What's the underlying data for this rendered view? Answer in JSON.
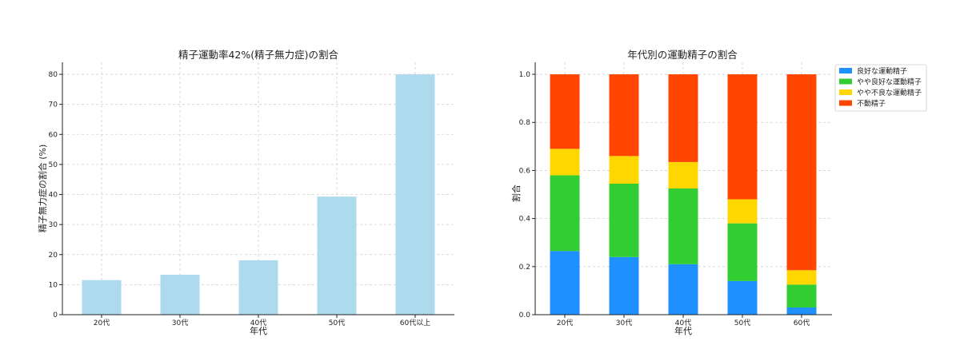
{
  "chart_data": [
    {
      "type": "bar",
      "title": "精子運動率42%(精子無力症)の割合",
      "xlabel": "年代",
      "ylabel": "精子無力症の割合 (%)",
      "categories": [
        "20代",
        "30代",
        "40代",
        "50代",
        "60代以上"
      ],
      "values": [
        11.5,
        13.3,
        18.1,
        39.3,
        80
      ],
      "ylim": [
        0,
        84
      ],
      "yticks": [
        "0",
        "10",
        "20",
        "30",
        "40",
        "50",
        "60",
        "70",
        "80"
      ],
      "ytick_values": [
        0,
        10,
        20,
        30,
        40,
        50,
        60,
        70,
        80
      ],
      "grid": true,
      "bar_color": "#ADDAEC"
    },
    {
      "type": "bar",
      "stacked": true,
      "title": "年代別の運動精子の割合",
      "xlabel": "年代",
      "ylabel": "割合",
      "categories": [
        "20代",
        "30代",
        "40代",
        "50代",
        "60代"
      ],
      "ylim": [
        0,
        1.05
      ],
      "yticks": [
        "0.0",
        "0.2",
        "0.4",
        "0.6",
        "0.8",
        "1.0"
      ],
      "ytick_values": [
        0,
        0.2,
        0.4,
        0.6,
        0.8,
        1.0
      ],
      "grid": true,
      "legend_position": "outside-top-right",
      "series": [
        {
          "name": "良好な運動精子",
          "color": "#1E90FF",
          "values": [
            0.265,
            0.24,
            0.21,
            0.14,
            0.03
          ]
        },
        {
          "name": "やや良好な運動精子",
          "color": "#32CD32",
          "values": [
            0.315,
            0.305,
            0.315,
            0.24,
            0.095
          ]
        },
        {
          "name": "やや不良な運動精子",
          "color": "#FFD700",
          "values": [
            0.11,
            0.115,
            0.11,
            0.1,
            0.06
          ]
        },
        {
          "name": "不動精子",
          "color": "#FF4500",
          "values": [
            0.31,
            0.34,
            0.365,
            0.52,
            0.815
          ]
        }
      ]
    }
  ]
}
